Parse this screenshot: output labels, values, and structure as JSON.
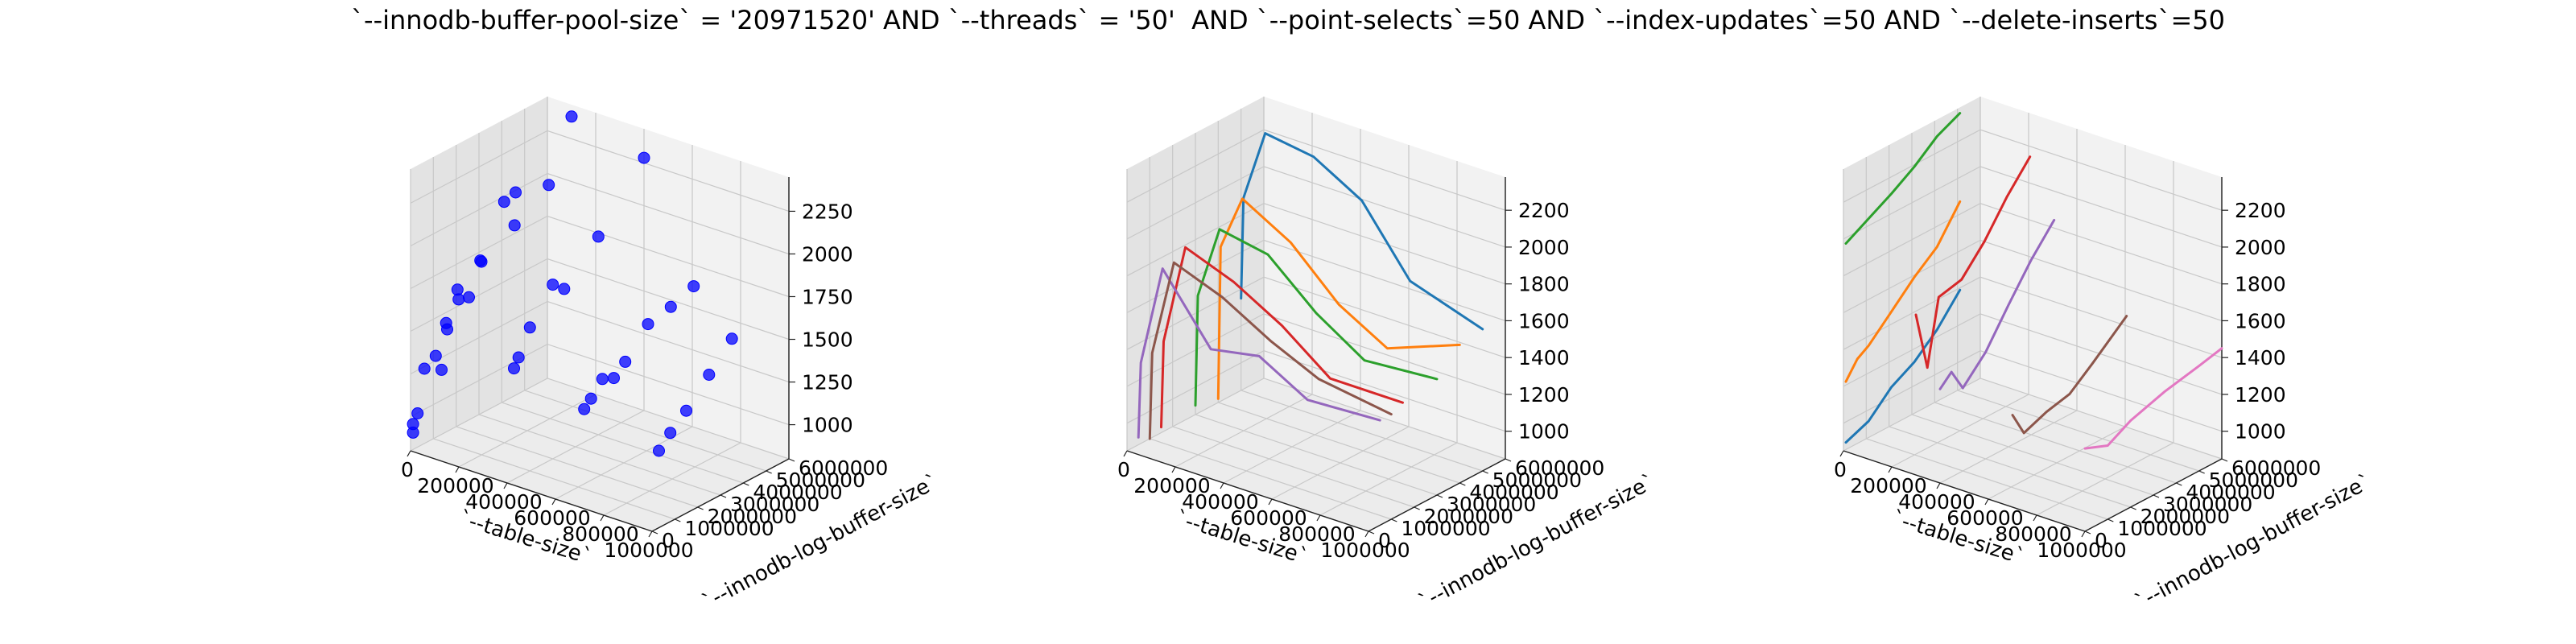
{
  "figure": {
    "title": "`--innodb-buffer-pool-size` = '20971520' AND `--threads` = '50'  AND `--point-selects`=50 AND `--index-updates`=50 AND `--delete-inserts`=50"
  },
  "chart_data": [
    {
      "type": "scatter",
      "xlabel": "`--table-size`",
      "ylabel": "`--innodb-log-buffer-size`",
      "zlabel": "",
      "xlim": [
        0,
        1000000
      ],
      "ylim": [
        0,
        6000000
      ],
      "zlim": [
        800,
        2450
      ],
      "x_ticks": [
        "0",
        "200000",
        "400000",
        "600000",
        "800000",
        "1000000"
      ],
      "y_ticks": [
        "0",
        "1000000",
        "2000000",
        "3000000",
        "4000000",
        "5000000",
        "6000000"
      ],
      "z_ticks": [
        "1000",
        "1250",
        "1500",
        "1750",
        "2000",
        "2250"
      ],
      "grid": true,
      "marker_color": "#0000ff",
      "points": [
        {
          "x": 1000,
          "y": 100000,
          "z": 900
        },
        {
          "x": 1000,
          "y": 100000,
          "z": 950
        },
        {
          "x": 10000,
          "y": 200000,
          "z": 1010
        },
        {
          "x": 10000,
          "y": 500000,
          "z": 1250
        },
        {
          "x": 10000,
          "y": 1000000,
          "z": 1290
        },
        {
          "x": 10000,
          "y": 1500000,
          "z": 1410
        },
        {
          "x": 10000,
          "y": 2000000,
          "z": 1550
        },
        {
          "x": 10000,
          "y": 3000000,
          "z": 1700
        },
        {
          "x": 10000,
          "y": 4000000,
          "z": 1980
        },
        {
          "x": 10000,
          "y": 4500000,
          "z": 2000
        },
        {
          "x": 100000,
          "y": 300000,
          "z": 1300
        },
        {
          "x": 100000,
          "y": 500000,
          "z": 1560
        },
        {
          "x": 100000,
          "y": 1000000,
          "z": 1720
        },
        {
          "x": 100000,
          "y": 1500000,
          "z": 1640
        },
        {
          "x": 100000,
          "y": 2000000,
          "z": 1820
        },
        {
          "x": 100000,
          "y": 3500000,
          "z": 1920
        },
        {
          "x": 100000,
          "y": 5000000,
          "z": 2050
        },
        {
          "x": 100000,
          "y": 6000000,
          "z": 2380
        },
        {
          "x": 400000,
          "y": 300000,
          "z": 1450
        },
        {
          "x": 400000,
          "y": 500000,
          "z": 1500
        },
        {
          "x": 400000,
          "y": 1000000,
          "z": 1640
        },
        {
          "x": 400000,
          "y": 2000000,
          "z": 1820
        },
        {
          "x": 400000,
          "y": 2500000,
          "z": 1760
        },
        {
          "x": 400000,
          "y": 4000000,
          "z": 1960
        },
        {
          "x": 400000,
          "y": 6000000,
          "z": 2280
        },
        {
          "x": 700000,
          "y": 200000,
          "z": 1360
        },
        {
          "x": 700000,
          "y": 500000,
          "z": 1400
        },
        {
          "x": 700000,
          "y": 1000000,
          "z": 1480
        },
        {
          "x": 700000,
          "y": 1500000,
          "z": 1450
        },
        {
          "x": 700000,
          "y": 2000000,
          "z": 1510
        },
        {
          "x": 700000,
          "y": 3000000,
          "z": 1660
        },
        {
          "x": 700000,
          "y": 4000000,
          "z": 1690
        },
        {
          "x": 700000,
          "y": 5000000,
          "z": 1740
        },
        {
          "x": 1000000,
          "y": 300000,
          "z": 1250
        },
        {
          "x": 1000000,
          "y": 800000,
          "z": 1320
        },
        {
          "x": 1000000,
          "y": 1500000,
          "z": 1400
        },
        {
          "x": 1000000,
          "y": 2500000,
          "z": 1540
        },
        {
          "x": 1000000,
          "y": 3500000,
          "z": 1680
        }
      ]
    },
    {
      "type": "line",
      "xlabel": "`--table-size`",
      "ylabel": "`--innodb-log-buffer-size`",
      "zlabel": "",
      "xlim": [
        0,
        1000000
      ],
      "ylim": [
        0,
        6000000
      ],
      "zlim": [
        850,
        2380
      ],
      "x_ticks": [
        "0",
        "200000",
        "400000",
        "600000",
        "800000",
        "1000000"
      ],
      "y_ticks": [
        "0",
        "1000000",
        "2000000",
        "3000000",
        "4000000",
        "5000000",
        "6000000"
      ],
      "z_ticks": [
        "1000",
        "1200",
        "1400",
        "1600",
        "1800",
        "2000",
        "2200"
      ],
      "grid": true,
      "series": [
        {
          "color": "#1f77b4",
          "points": [
            [
              0,
              5000000,
              1350
            ],
            [
              10000,
              5000000,
              1900
            ],
            [
              100000,
              5000000,
              2290
            ],
            [
              300000,
              5000000,
              2250
            ],
            [
              500000,
              5000000,
              2100
            ],
            [
              700000,
              5000000,
              1750
            ],
            [
              1000000,
              5000000,
              1620
            ]
          ]
        },
        {
          "color": "#ff7f0e",
          "points": [
            [
              0,
              4000000,
              870
            ],
            [
              10000,
              4000000,
              1700
            ],
            [
              100000,
              4000000,
              2000
            ],
            [
              300000,
              4000000,
              1850
            ],
            [
              500000,
              4000000,
              1600
            ],
            [
              700000,
              4000000,
              1450
            ],
            [
              1000000,
              4000000,
              1600
            ]
          ]
        },
        {
          "color": "#2ca02c",
          "points": [
            [
              0,
              3000000,
              900
            ],
            [
              10000,
              3000000,
              1500
            ],
            [
              100000,
              3000000,
              1900
            ],
            [
              300000,
              3000000,
              1850
            ],
            [
              500000,
              3000000,
              1620
            ],
            [
              700000,
              3000000,
              1450
            ],
            [
              1000000,
              3000000,
              1480
            ]
          ]
        },
        {
          "color": "#d62728",
          "points": [
            [
              0,
              1500000,
              880
            ],
            [
              10000,
              1500000,
              1350
            ],
            [
              100000,
              1500000,
              1900
            ],
            [
              300000,
              1500000,
              1800
            ],
            [
              500000,
              1500000,
              1650
            ],
            [
              700000,
              1500000,
              1450
            ],
            [
              1000000,
              1500000,
              1450
            ]
          ]
        },
        {
          "color": "#9467bd",
          "points": [
            [
              0,
              500000,
              890
            ],
            [
              10000,
              500000,
              1300
            ],
            [
              100000,
              500000,
              1850
            ],
            [
              300000,
              500000,
              1500
            ],
            [
              500000,
              500000,
              1550
            ],
            [
              700000,
              500000,
              1400
            ],
            [
              1000000,
              500000,
              1420
            ]
          ]
        },
        {
          "color": "#8c564b",
          "points": [
            [
              0,
              1000000,
              850
            ],
            [
              10000,
              1000000,
              1320
            ],
            [
              100000,
              1000000,
              1850
            ],
            [
              300000,
              1000000,
              1750
            ],
            [
              500000,
              1000000,
              1600
            ],
            [
              700000,
              1000000,
              1480
            ],
            [
              1000000,
              1000000,
              1420
            ]
          ]
        }
      ]
    },
    {
      "type": "line",
      "xlabel": "`--table-size`",
      "ylabel": "`--innodb-log-buffer-size`",
      "zlabel": "",
      "xlim": [
        0,
        1000000
      ],
      "ylim": [
        0,
        6000000
      ],
      "zlim": [
        850,
        2380
      ],
      "x_ticks": [
        "0",
        "200000",
        "400000",
        "600000",
        "800000",
        "1000000"
      ],
      "y_ticks": [
        "0",
        "1000000",
        "2000000",
        "3000000",
        "4000000",
        "5000000",
        "6000000"
      ],
      "z_ticks": [
        "1000",
        "1200",
        "1400",
        "1600",
        "1800",
        "2000",
        "2200"
      ],
      "grid": true,
      "series": [
        {
          "color": "#1f77b4",
          "points": [
            [
              10000,
              0,
              900
            ],
            [
              10000,
              1000000,
              950
            ],
            [
              10000,
              2000000,
              1070
            ],
            [
              10000,
              3000000,
              1140
            ],
            [
              10000,
              4000000,
              1250
            ],
            [
              10000,
              5000000,
              1400
            ]
          ]
        },
        {
          "color": "#ff7f0e",
          "points": [
            [
              10000,
              0,
              1230
            ],
            [
              10000,
              500000,
              1320
            ],
            [
              10000,
              1000000,
              1360
            ],
            [
              10000,
              2000000,
              1480
            ],
            [
              10000,
              3000000,
              1600
            ],
            [
              10000,
              4000000,
              1700
            ],
            [
              10000,
              5000000,
              1880
            ]
          ]
        },
        {
          "color": "#2ca02c",
          "points": [
            [
              10000,
              0,
              1980
            ],
            [
              10000,
              1000000,
              2050
            ],
            [
              10000,
              2000000,
              2120
            ],
            [
              10000,
              3000000,
              2200
            ],
            [
              10000,
              4000000,
              2300
            ],
            [
              10000,
              5000000,
              2360
            ]
          ]
        },
        {
          "color": "#d62728",
          "points": [
            [
              300000,
              0,
              1720
            ],
            [
              300000,
              500000,
              1400
            ],
            [
              300000,
              1000000,
              1750
            ],
            [
              300000,
              2000000,
              1780
            ],
            [
              300000,
              3000000,
              1920
            ],
            [
              300000,
              4000000,
              2100
            ],
            [
              300000,
              5000000,
              2250
            ]
          ]
        },
        {
          "color": "#9467bd",
          "points": [
            [
              400000,
              0,
              1360
            ],
            [
              400000,
              500000,
              1420
            ],
            [
              400000,
              1000000,
              1300
            ],
            [
              400000,
              2000000,
              1430
            ],
            [
              400000,
              3000000,
              1620
            ],
            [
              400000,
              4000000,
              1800
            ],
            [
              400000,
              5000000,
              1950
            ]
          ]
        },
        {
          "color": "#8c564b",
          "points": [
            [
              700000,
              0,
              1350
            ],
            [
              700000,
              500000,
              1220
            ],
            [
              700000,
              1500000,
              1270
            ],
            [
              700000,
              2500000,
              1300
            ],
            [
              700000,
              3500000,
              1400
            ],
            [
              700000,
              5000000,
              1560
            ]
          ]
        },
        {
          "color": "#e377c2",
          "points": [
            [
              1000000,
              0,
              1300
            ],
            [
              1000000,
              1000000,
              1250
            ],
            [
              1000000,
              2000000,
              1320
            ],
            [
              1000000,
              3500000,
              1380
            ],
            [
              1000000,
              5000000,
              1420
            ],
            [
              1000000,
              6000000,
              1450
            ]
          ]
        }
      ]
    }
  ]
}
